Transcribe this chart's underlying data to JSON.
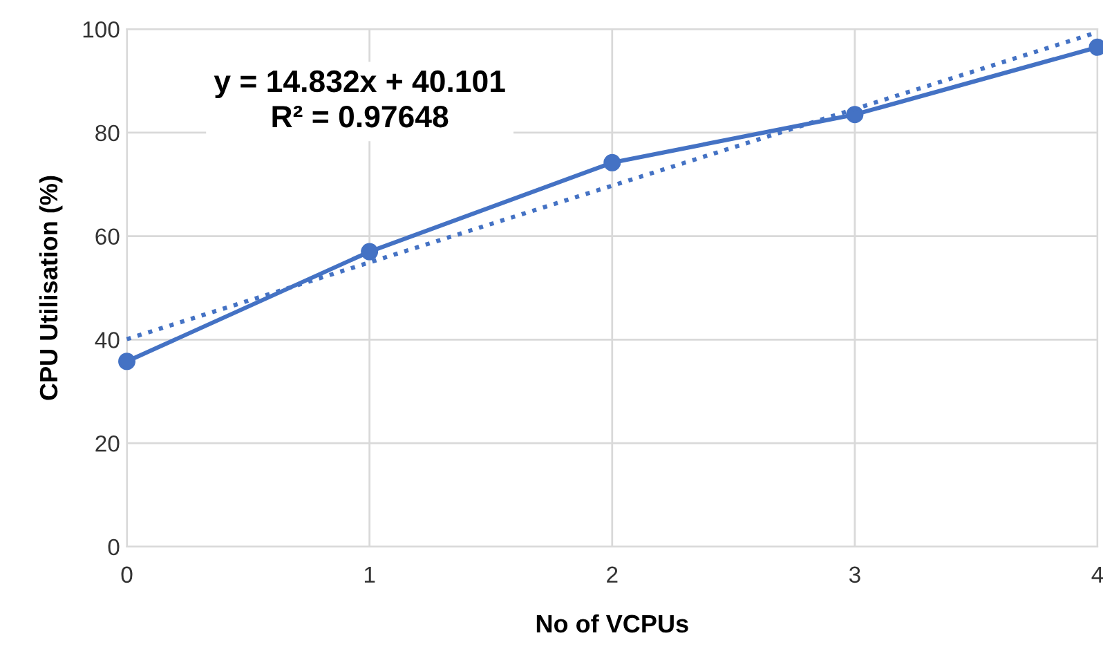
{
  "chart_data": {
    "type": "line",
    "xlabel": "No of VCPUs",
    "ylabel": "CPU Utilisation (%)",
    "x": [
      0,
      1,
      2,
      3,
      4
    ],
    "series": [
      {
        "color": "#4472c4",
        "values": [
          35.8,
          57,
          74.2,
          83.5,
          96.5
        ],
        "marker": "circle",
        "line_style": "solid"
      },
      {
        "color": "#4472c4",
        "x": [
          0,
          4
        ],
        "values": [
          40.1,
          99.4
        ],
        "marker": "none",
        "line_style": "dotted"
      }
    ],
    "annotations": [
      "y = 14.832x + 40.101\nR² = 0.97648"
    ],
    "xlim": [
      0,
      4
    ],
    "xticks": [
      0,
      1,
      2,
      3,
      4
    ],
    "ylim": [
      0,
      100
    ],
    "yticks": [
      0,
      20,
      40,
      60,
      80,
      100
    ],
    "grid": true,
    "legend": false
  }
}
